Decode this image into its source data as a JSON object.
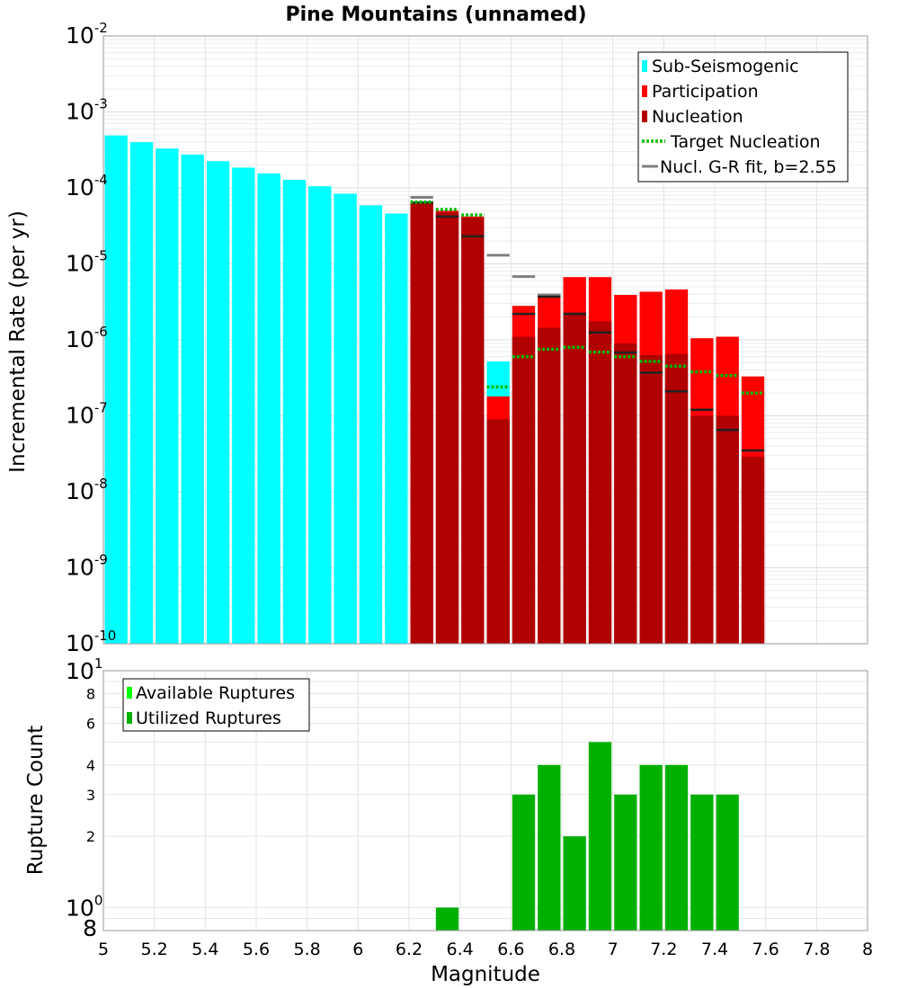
{
  "chart_data": [
    {
      "type": "bar",
      "title": "Pine Mountains (unnamed)",
      "xlabel": "",
      "ylabel": "Incremental Rate (per yr)",
      "yscale": "log",
      "xlim": [
        5,
        8
      ],
      "ylim": [
        1e-10,
        0.01
      ],
      "grid": true,
      "legend_position": "top-right",
      "y_ticks": [
        {
          "base": "10",
          "exp": "-10"
        },
        {
          "base": "10",
          "exp": "-9"
        },
        {
          "base": "10",
          "exp": "-8"
        },
        {
          "base": "10",
          "exp": "-7"
        },
        {
          "base": "10",
          "exp": "-6"
        },
        {
          "base": "10",
          "exp": "-5"
        },
        {
          "base": "10",
          "exp": "-4"
        },
        {
          "base": "10",
          "exp": "-3"
        },
        {
          "base": "10",
          "exp": "-2"
        }
      ],
      "legend": [
        {
          "label": "Sub-Seismogenic",
          "color": "#00ffff",
          "kind": "box"
        },
        {
          "label": "Participation",
          "color": "#ff0000",
          "kind": "box"
        },
        {
          "label": "Nucleation",
          "color": "#b00000",
          "kind": "box"
        },
        {
          "label": "Target Nucleation",
          "color": "#00bb00",
          "kind": "dotted"
        },
        {
          "label": "Nucl. G-R fit, b=2.55",
          "color": "#808080",
          "kind": "line"
        }
      ],
      "colors": {
        "sub_seismogenic": "#00ffff",
        "participation": "#ff0000",
        "nucleation": "#b00000",
        "nucleation_mark": "#222222",
        "target": "#00bb00",
        "gr_fit": "#808080"
      },
      "series": [
        {
          "name": "Sub-Seismogenic",
          "x": [
            5.05,
            5.15,
            5.25,
            5.35,
            5.45,
            5.55,
            5.65,
            5.75,
            5.85,
            5.95,
            6.05,
            6.15,
            6.55
          ],
          "values": [
            0.00049,
            0.0004,
            0.00033,
            0.000275,
            0.000225,
            0.000185,
            0.000155,
            0.000128,
            0.000105,
            8.4e-05,
            5.9e-05,
            4.6e-05,
            5.2e-07
          ]
        },
        {
          "name": "Participation",
          "x": [
            6.25,
            6.35,
            6.45,
            6.55,
            6.65,
            6.75,
            6.85,
            6.95,
            7.05,
            7.15,
            7.25,
            7.35,
            7.45,
            7.55
          ],
          "values": [
            6.5e-05,
            5e-05,
            4.2e-05,
            1.8e-07,
            2.8e-06,
            4e-06,
            6.7e-06,
            6.7e-06,
            3.9e-06,
            4.3e-06,
            4.6e-06,
            1.05e-06,
            1.1e-06,
            3.3e-07
          ]
        },
        {
          "name": "Nucleation",
          "x": [
            6.25,
            6.35,
            6.45,
            6.55,
            6.65,
            6.75,
            6.85,
            6.95,
            7.05,
            7.15,
            7.25,
            7.35,
            7.45,
            7.55
          ],
          "values": [
            6.2e-05,
            4.8e-05,
            4.1e-05,
            9e-08,
            1.1e-06,
            1.45e-06,
            2.3e-06,
            1.75e-06,
            9e-07,
            6.3e-07,
            6.5e-07,
            1e-07,
            1e-07,
            2.9e-08
          ]
        },
        {
          "name": "Nucleation markers",
          "x": [
            6.25,
            6.35,
            6.45,
            6.65,
            6.75,
            6.85,
            6.95,
            7.05,
            7.15,
            7.25,
            7.35,
            7.45,
            7.55
          ],
          "values": [
            6.4e-05,
            4.2e-05,
            2.3e-05,
            2.2e-06,
            3.7e-06,
            2.2e-06,
            1.25e-06,
            6.8e-07,
            3.7e-07,
            2.1e-07,
            1.2e-07,
            6.5e-08,
            3.5e-08
          ]
        },
        {
          "name": "Target Nucleation",
          "x": [
            6.25,
            6.35,
            6.45,
            6.55,
            6.65,
            6.75,
            6.85,
            6.95,
            7.05,
            7.15,
            7.25,
            7.35,
            7.45,
            7.55
          ],
          "values": [
            6.5e-05,
            5.2e-05,
            4.4e-05,
            2.4e-07,
            6e-07,
            7.5e-07,
            8e-07,
            6.9e-07,
            6e-07,
            5.2e-07,
            4.5e-07,
            3.8e-07,
            3.4e-07,
            2e-07
          ]
        },
        {
          "name": "Nucl. G-R fit, b=2.55",
          "x": [
            6.25,
            6.55,
            6.65,
            6.75
          ],
          "values": [
            7.5e-05,
            1.3e-05,
            6.8e-06,
            3.9e-06
          ]
        }
      ]
    },
    {
      "type": "bar",
      "title": "",
      "xlabel": "Magnitude",
      "ylabel": "Rupture Count",
      "yscale": "log",
      "xlim": [
        5,
        8
      ],
      "ylim": [
        0.8,
        10
      ],
      "grid": true,
      "legend_position": "top-left",
      "x_ticks": [
        "5",
        "5.2",
        "5.4",
        "5.6",
        "5.8",
        "6",
        "6.2",
        "6.4",
        "6.6",
        "6.8",
        "7",
        "7.2",
        "7.4",
        "7.6",
        "7.8",
        "8"
      ],
      "y_major_ticks": [
        {
          "base": "10",
          "exp": "0",
          "value": 1
        },
        {
          "base": "10",
          "exp": "1",
          "value": 10
        }
      ],
      "y_minor_ticks": [
        {
          "label": "8",
          "value": 0.8
        },
        {
          "label": "2",
          "value": 2
        },
        {
          "label": "3",
          "value": 3
        },
        {
          "label": "4",
          "value": 4
        },
        {
          "label": "6",
          "value": 6
        },
        {
          "label": "8",
          "value": 8
        }
      ],
      "legend": [
        {
          "label": "Available Ruptures",
          "color": "#00ff00",
          "kind": "box"
        },
        {
          "label": "Utilized Ruptures",
          "color": "#00b000",
          "kind": "box"
        }
      ],
      "colors": {
        "available": "#00ff00",
        "utilized": "#00b000"
      },
      "series": [
        {
          "name": "Utilized Ruptures",
          "x": [
            6.35,
            6.65,
            6.75,
            6.85,
            6.95,
            7.05,
            7.15,
            7.25,
            7.35,
            7.45
          ],
          "values": [
            1,
            3,
            4,
            2,
            5,
            3,
            4,
            4,
            3,
            3
          ]
        }
      ]
    }
  ]
}
